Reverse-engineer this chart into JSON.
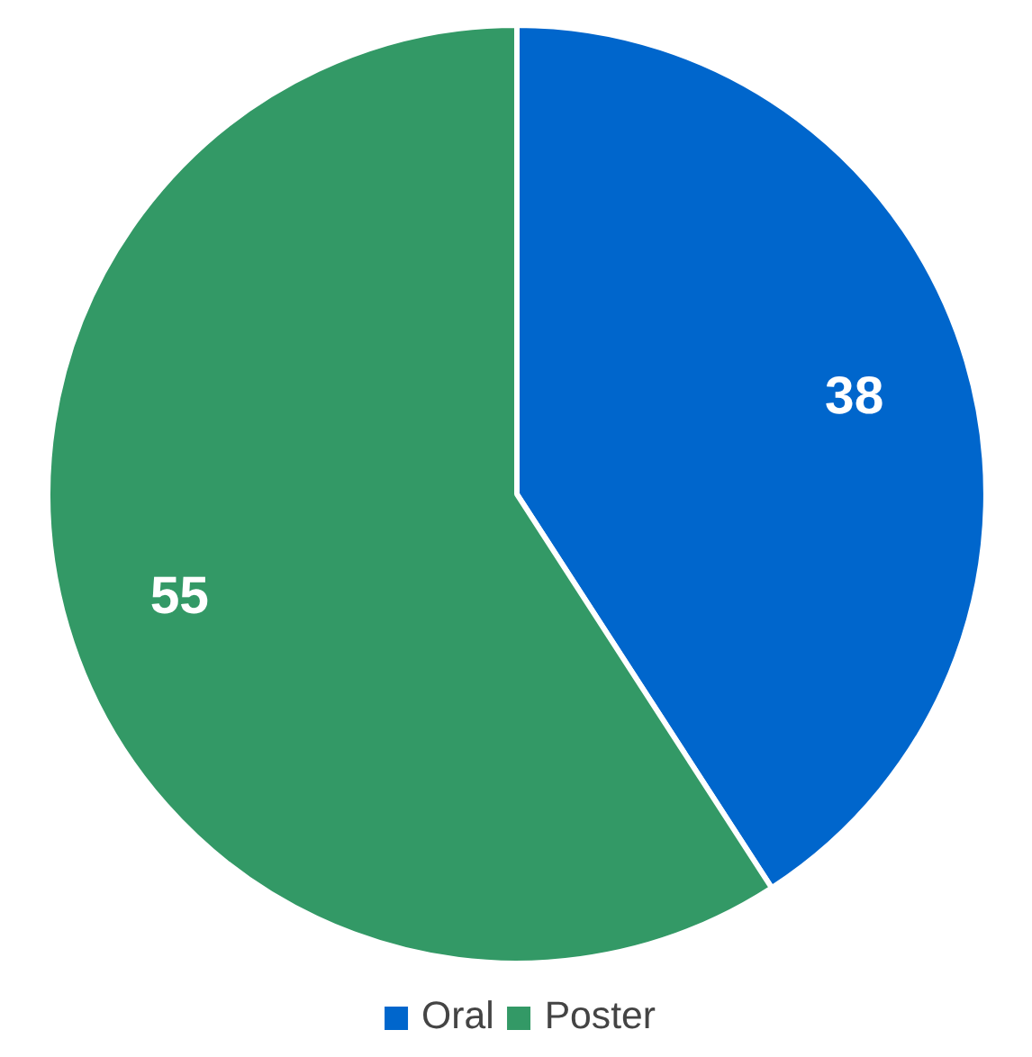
{
  "chart_data": {
    "type": "pie",
    "categories": [
      "Oral",
      "Poster"
    ],
    "values": [
      38,
      55
    ],
    "colors": [
      "#0066cc",
      "#339966"
    ],
    "data_labels": true,
    "legend": "bottom"
  }
}
